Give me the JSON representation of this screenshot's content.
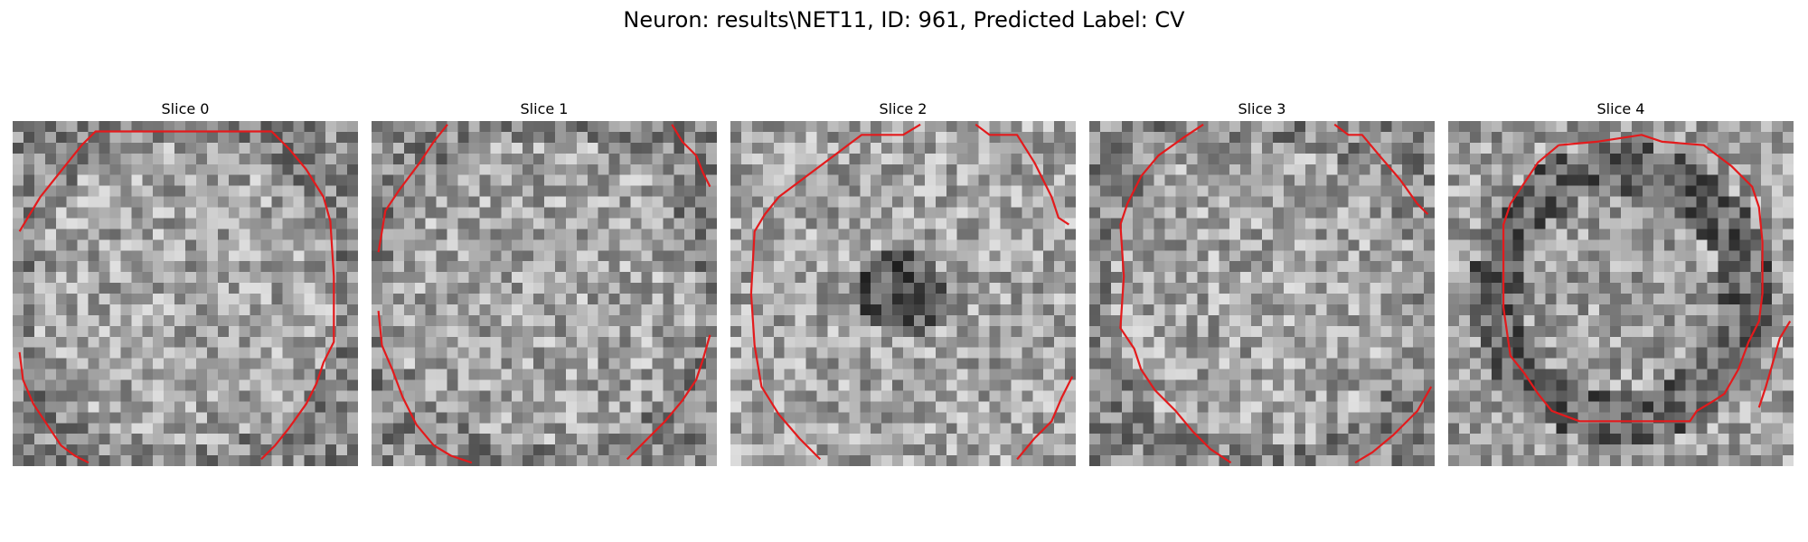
{
  "figure": {
    "title": "Neuron: results\\NET11, ID: 961, Predicted Label: CV"
  },
  "slices": [
    {
      "title": "Slice 0",
      "contour_color": "#e31a1c",
      "segments": [
        [
          [
            0.02,
            0.32
          ],
          [
            0.05,
            0.27
          ],
          [
            0.08,
            0.22
          ],
          [
            0.12,
            0.17
          ],
          [
            0.16,
            0.12
          ],
          [
            0.2,
            0.07
          ],
          [
            0.24,
            0.03
          ],
          [
            0.75,
            0.03
          ],
          [
            0.8,
            0.08
          ],
          [
            0.85,
            0.14
          ],
          [
            0.9,
            0.22
          ],
          [
            0.92,
            0.29
          ],
          [
            0.93,
            0.45
          ],
          [
            0.93,
            0.64
          ],
          [
            0.9,
            0.7
          ],
          [
            0.88,
            0.76
          ],
          [
            0.85,
            0.82
          ],
          [
            0.8,
            0.89
          ],
          [
            0.76,
            0.94
          ],
          [
            0.72,
            0.98
          ]
        ],
        [
          [
            0.02,
            0.67
          ],
          [
            0.03,
            0.75
          ],
          [
            0.06,
            0.82
          ],
          [
            0.1,
            0.88
          ],
          [
            0.14,
            0.94
          ],
          [
            0.18,
            0.97
          ],
          [
            0.22,
            0.99
          ]
        ]
      ]
    },
    {
      "title": "Slice 1",
      "contour_color": "#e31a1c",
      "segments": [
        [
          [
            0.22,
            0.01
          ],
          [
            0.18,
            0.06
          ],
          [
            0.14,
            0.12
          ],
          [
            0.08,
            0.2
          ],
          [
            0.04,
            0.26
          ],
          [
            0.03,
            0.32
          ],
          [
            0.02,
            0.38
          ]
        ],
        [
          [
            0.87,
            0.01
          ],
          [
            0.9,
            0.06
          ],
          [
            0.94,
            0.1
          ],
          [
            0.96,
            0.15
          ],
          [
            0.98,
            0.19
          ]
        ],
        [
          [
            0.02,
            0.55
          ],
          [
            0.03,
            0.65
          ],
          [
            0.06,
            0.72
          ],
          [
            0.09,
            0.8
          ],
          [
            0.13,
            0.88
          ],
          [
            0.18,
            0.94
          ],
          [
            0.23,
            0.97
          ],
          [
            0.29,
            0.99
          ]
        ],
        [
          [
            0.98,
            0.62
          ],
          [
            0.96,
            0.69
          ],
          [
            0.94,
            0.75
          ],
          [
            0.9,
            0.81
          ],
          [
            0.85,
            0.87
          ],
          [
            0.8,
            0.92
          ],
          [
            0.74,
            0.98
          ]
        ]
      ]
    },
    {
      "title": "Slice 2",
      "contour_color": "#e31a1c",
      "segments": [
        [
          [
            0.55,
            0.01
          ],
          [
            0.5,
            0.04
          ],
          [
            0.38,
            0.04
          ],
          [
            0.3,
            0.1
          ],
          [
            0.22,
            0.16
          ],
          [
            0.14,
            0.22
          ],
          [
            0.1,
            0.27
          ],
          [
            0.07,
            0.32
          ],
          [
            0.06,
            0.5
          ],
          [
            0.07,
            0.65
          ],
          [
            0.09,
            0.77
          ],
          [
            0.14,
            0.85
          ],
          [
            0.2,
            0.92
          ],
          [
            0.26,
            0.98
          ]
        ],
        [
          [
            0.71,
            0.01
          ],
          [
            0.75,
            0.04
          ],
          [
            0.83,
            0.04
          ],
          [
            0.88,
            0.12
          ],
          [
            0.93,
            0.22
          ],
          [
            0.95,
            0.28
          ],
          [
            0.98,
            0.3
          ]
        ],
        [
          [
            0.99,
            0.74
          ],
          [
            0.96,
            0.8
          ],
          [
            0.93,
            0.87
          ],
          [
            0.88,
            0.92
          ],
          [
            0.83,
            0.98
          ]
        ]
      ]
    },
    {
      "title": "Slice 3",
      "contour_color": "#e31a1c",
      "segments": [
        [
          [
            0.33,
            0.01
          ],
          [
            0.27,
            0.05
          ],
          [
            0.2,
            0.1
          ],
          [
            0.15,
            0.16
          ],
          [
            0.11,
            0.24
          ],
          [
            0.09,
            0.3
          ],
          [
            0.1,
            0.45
          ],
          [
            0.09,
            0.6
          ],
          [
            0.13,
            0.66
          ],
          [
            0.15,
            0.72
          ],
          [
            0.19,
            0.78
          ],
          [
            0.25,
            0.84
          ],
          [
            0.3,
            0.9
          ],
          [
            0.35,
            0.95
          ],
          [
            0.41,
            0.99
          ]
        ],
        [
          [
            0.71,
            0.01
          ],
          [
            0.75,
            0.04
          ],
          [
            0.79,
            0.04
          ],
          [
            0.84,
            0.1
          ],
          [
            0.9,
            0.17
          ],
          [
            0.95,
            0.24
          ],
          [
            0.98,
            0.27
          ]
        ],
        [
          [
            0.99,
            0.77
          ],
          [
            0.95,
            0.84
          ],
          [
            0.88,
            0.91
          ],
          [
            0.82,
            0.96
          ],
          [
            0.77,
            0.99
          ]
        ]
      ]
    },
    {
      "title": "Slice 4",
      "contour_color": "#e31a1c",
      "segments": [
        [
          [
            0.32,
            0.07
          ],
          [
            0.43,
            0.06
          ],
          [
            0.56,
            0.04
          ],
          [
            0.62,
            0.06
          ],
          [
            0.74,
            0.07
          ],
          [
            0.82,
            0.13
          ],
          [
            0.88,
            0.19
          ],
          [
            0.9,
            0.25
          ],
          [
            0.91,
            0.35
          ],
          [
            0.91,
            0.5
          ],
          [
            0.9,
            0.58
          ],
          [
            0.87,
            0.64
          ],
          [
            0.84,
            0.72
          ],
          [
            0.8,
            0.79
          ],
          [
            0.77,
            0.81
          ],
          [
            0.72,
            0.84
          ],
          [
            0.7,
            0.87
          ],
          [
            0.38,
            0.87
          ],
          [
            0.3,
            0.84
          ],
          [
            0.26,
            0.79
          ],
          [
            0.22,
            0.73
          ],
          [
            0.18,
            0.68
          ],
          [
            0.16,
            0.54
          ],
          [
            0.16,
            0.3
          ],
          [
            0.18,
            0.24
          ],
          [
            0.22,
            0.18
          ],
          [
            0.26,
            0.12
          ],
          [
            0.32,
            0.07
          ]
        ],
        [
          [
            0.99,
            0.58
          ],
          [
            0.96,
            0.63
          ],
          [
            0.94,
            0.7
          ],
          [
            0.92,
            0.77
          ],
          [
            0.9,
            0.83
          ]
        ]
      ]
    }
  ]
}
